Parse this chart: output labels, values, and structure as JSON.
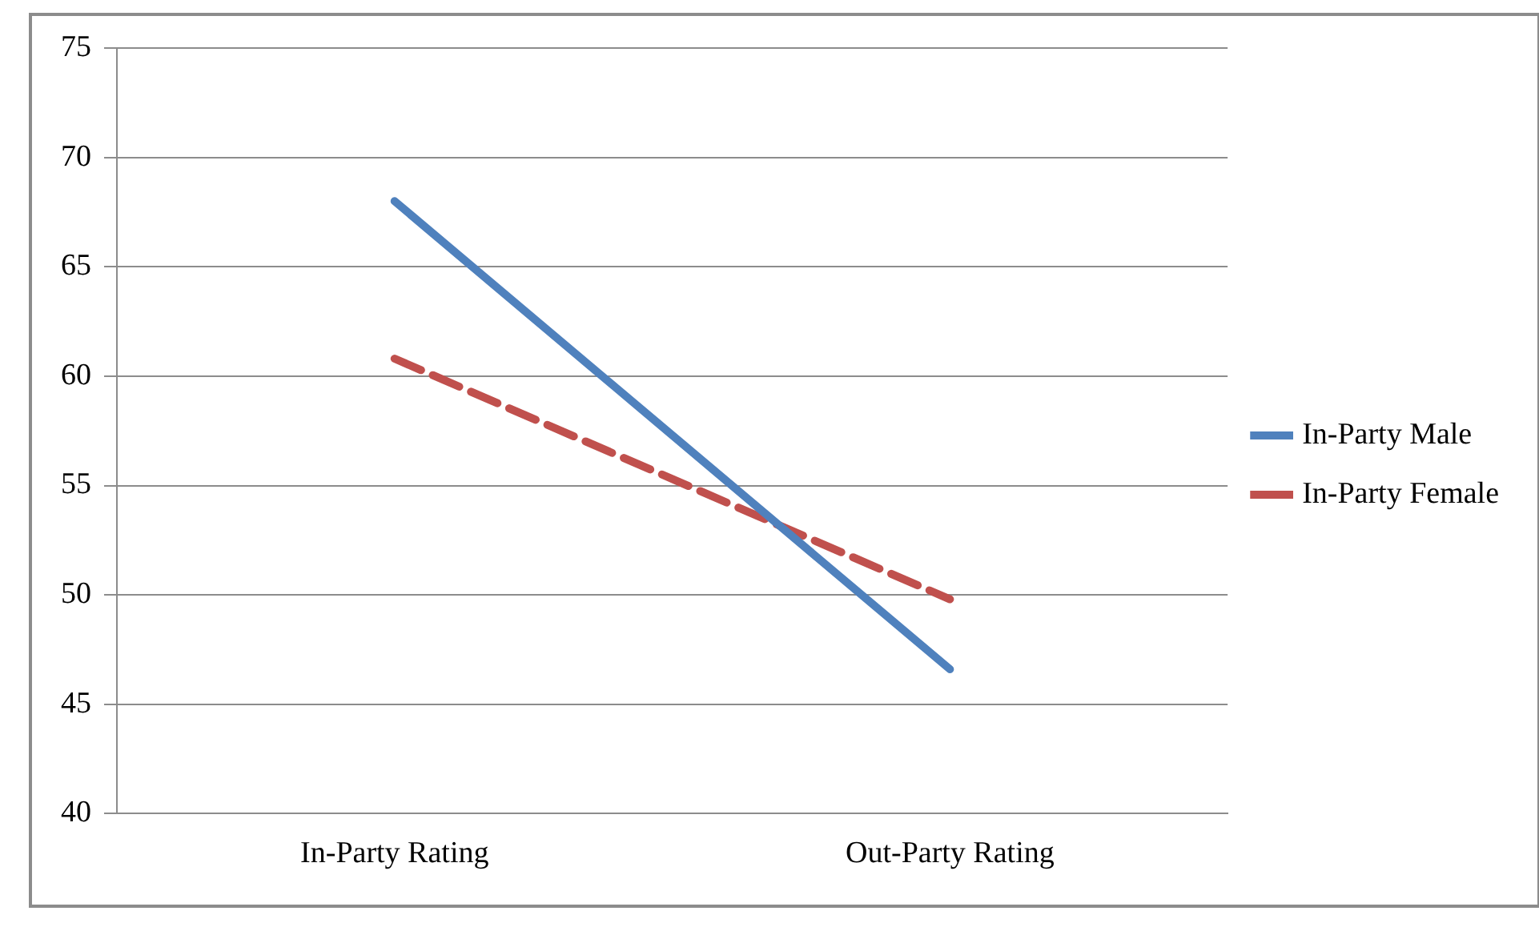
{
  "chart_data": {
    "type": "line",
    "categories": [
      "In-Party Rating",
      "Out-Party Rating"
    ],
    "series": [
      {
        "name": "In-Party Male",
        "color": "#4f81bd",
        "values": [
          68,
          46.6
        ],
        "line_style": "solid"
      },
      {
        "name": "In-Party Female",
        "color": "#c0504d",
        "values": [
          60.8,
          49.8
        ],
        "line_style": "dashed"
      }
    ],
    "ylim": [
      40,
      75
    ],
    "yticks": [
      40,
      45,
      50,
      55,
      60,
      65,
      70,
      75
    ],
    "grid": "y",
    "legend": "right",
    "marker": "none"
  }
}
